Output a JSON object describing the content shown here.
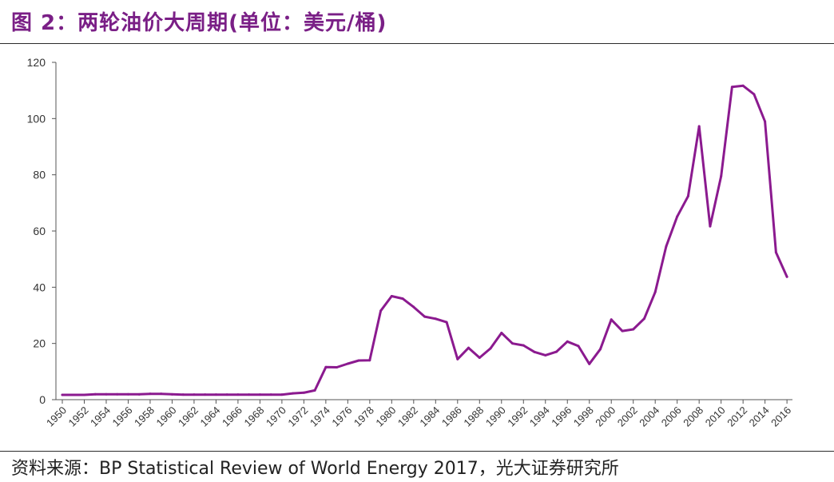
{
  "title": "图 2：两轮油价大周期(单位：美元/桶)",
  "source": "资料来源：BP Statistical Review of World Energy 2017，光大证券研究所",
  "colors": {
    "title": "#7a1f86",
    "line": "#8b1a8f",
    "axis": "#555555"
  },
  "chart_data": {
    "type": "line",
    "title": "",
    "xlabel": "",
    "ylabel": "",
    "ylim": [
      0,
      120
    ],
    "yticks": [
      0,
      20,
      40,
      60,
      80,
      100,
      120
    ],
    "xticks": [
      "1950",
      "1952",
      "1954",
      "1956",
      "1958",
      "1960",
      "1962",
      "1964",
      "1966",
      "1968",
      "1970",
      "1972",
      "1974",
      "1976",
      "1978",
      "1980",
      "1982",
      "1984",
      "1986",
      "1988",
      "1990",
      "1992",
      "1994",
      "1996",
      "1998",
      "2000",
      "2002",
      "2004",
      "2006",
      "2008",
      "2010",
      "2012",
      "2014",
      "2016"
    ],
    "grid": false,
    "legend": "none",
    "series": [
      {
        "x": [
          1950,
          1951,
          1952,
          1953,
          1954,
          1955,
          1956,
          1957,
          1958,
          1959,
          1960,
          1961,
          1962,
          1963,
          1964,
          1965,
          1966,
          1967,
          1968,
          1969,
          1970,
          1971,
          1972,
          1973,
          1974,
          1975,
          1976,
          1977,
          1978,
          1979,
          1980,
          1981,
          1982,
          1983,
          1984,
          1985,
          1986,
          1987,
          1988,
          1989,
          1990,
          1991,
          1992,
          1993,
          1994,
          1995,
          1996,
          1997,
          1998,
          1999,
          2000,
          2001,
          2002,
          2003,
          2004,
          2005,
          2006,
          2007,
          2008,
          2009,
          2010,
          2011,
          2012,
          2013,
          2014,
          2015,
          2016
        ],
        "values": [
          1.71,
          1.71,
          1.71,
          1.93,
          1.93,
          1.93,
          1.93,
          1.9,
          2.08,
          2.08,
          1.9,
          1.8,
          1.8,
          1.8,
          1.8,
          1.8,
          1.8,
          1.8,
          1.8,
          1.8,
          1.8,
          2.24,
          2.48,
          3.29,
          11.58,
          11.53,
          12.8,
          13.92,
          14.02,
          31.61,
          36.83,
          35.93,
          32.97,
          29.55,
          28.78,
          27.56,
          14.43,
          18.44,
          14.92,
          18.23,
          23.73,
          20.0,
          19.32,
          16.97,
          15.82,
          17.02,
          20.67,
          19.09,
          12.72,
          17.97,
          28.5,
          24.44,
          25.02,
          28.83,
          38.27,
          54.52,
          65.14,
          72.39,
          97.26,
          61.67,
          79.5,
          111.26,
          111.67,
          108.66,
          98.95,
          52.39,
          43.73
        ]
      }
    ]
  }
}
